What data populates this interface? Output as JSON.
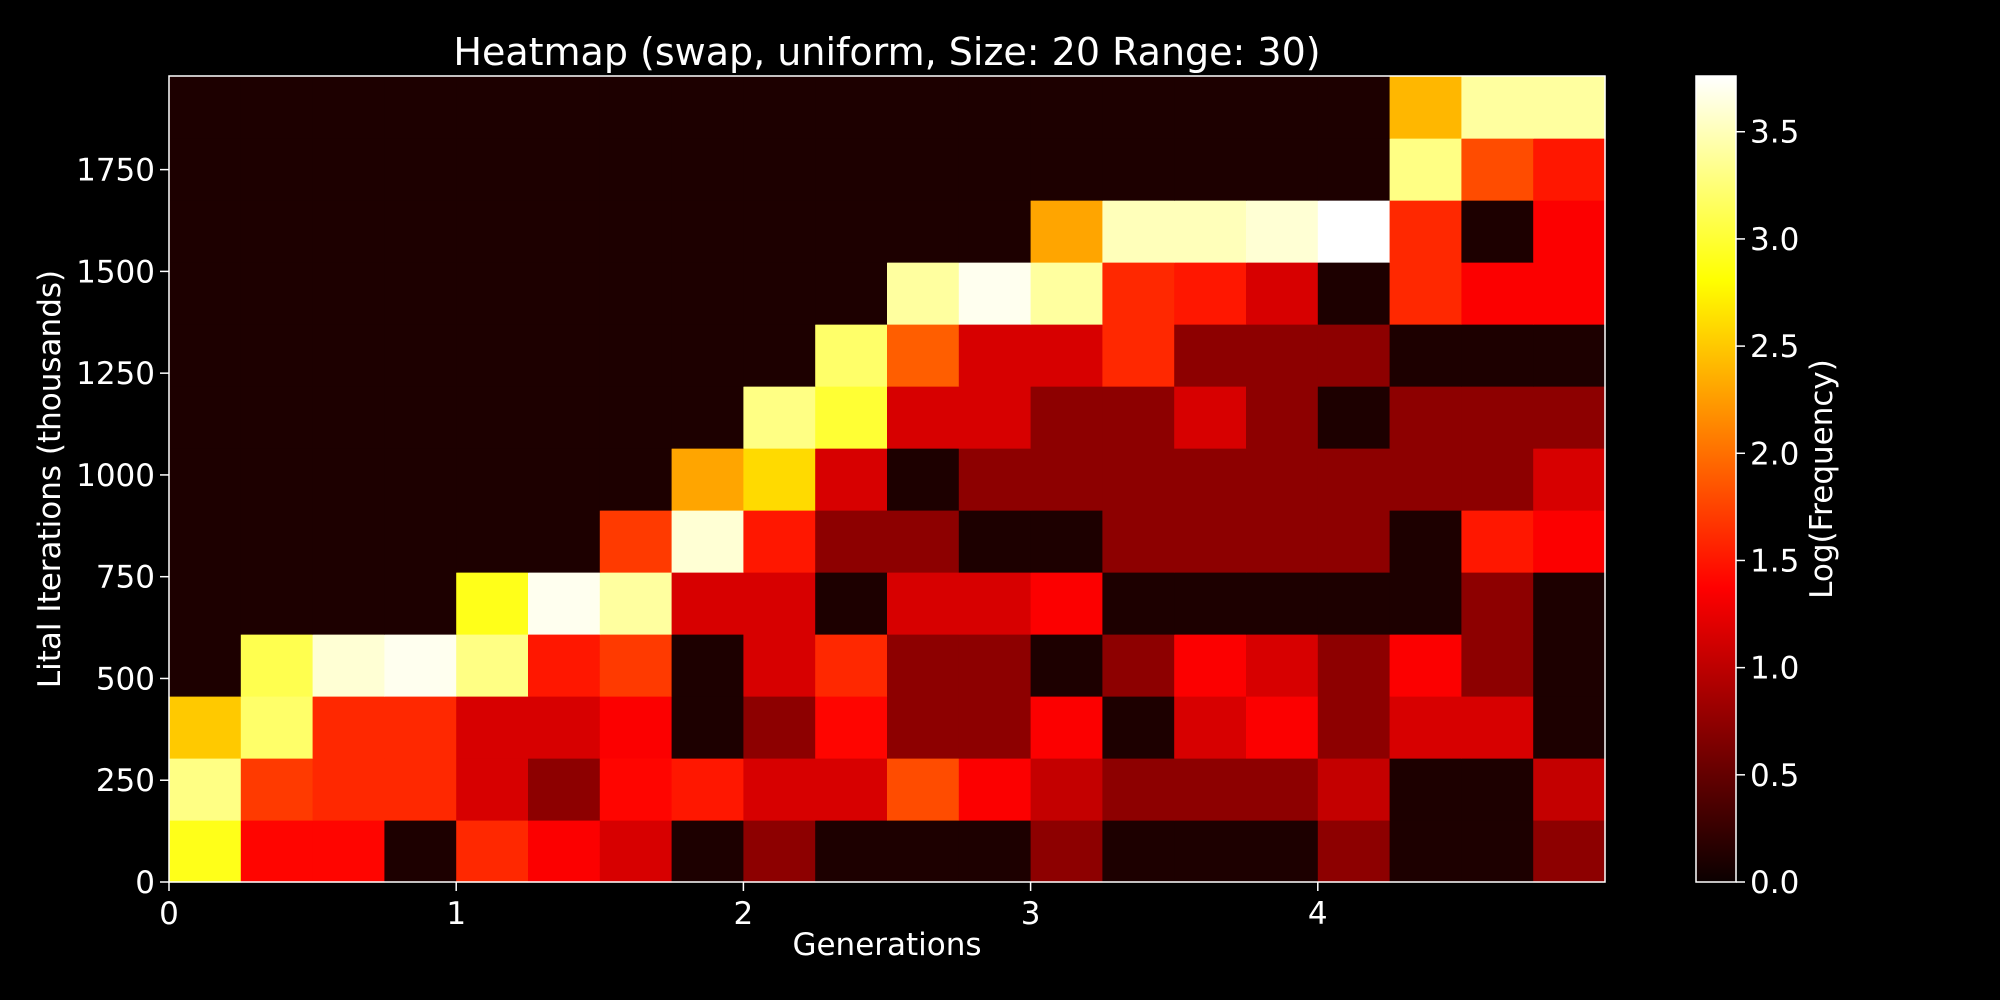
{
  "chart_data": {
    "type": "heatmap",
    "title": "Heatmap (swap, uniform, Size: 20 Range: 30)",
    "xlabel": "Generations",
    "ylabel": "Lital Iterations (thousands)",
    "colorbar_label": "Log(Frequency)",
    "colormap": "hot",
    "xlim": [
      0,
      5
    ],
    "ylim": [
      0,
      1980
    ],
    "clim": [
      0,
      3.76
    ],
    "x_ticks": [
      0,
      1,
      2,
      3,
      4
    ],
    "x_tick_labels": [
      "0",
      "1",
      "2",
      "3",
      "4"
    ],
    "y_ticks": [
      0,
      250,
      500,
      750,
      1000,
      1250,
      1500,
      1750
    ],
    "y_tick_labels": [
      "0",
      "250",
      "500",
      "750",
      "1000",
      "1250",
      "1500",
      "1750"
    ],
    "colorbar_ticks": [
      0.0,
      0.5,
      1.0,
      1.5,
      2.0,
      2.5,
      3.0,
      3.5
    ],
    "colorbar_tick_labels": [
      "0.0",
      "0.5",
      "1.0",
      "1.5",
      "2.0",
      "2.5",
      "3.0",
      "3.5"
    ],
    "n_cols": 20,
    "n_rows": 13,
    "x_bin_width": 0.25,
    "y_bin_height": 152.3,
    "grid": false,
    "values_row_order": "bottom-to-top",
    "values": [
      [
        2.9,
        1.4,
        1.4,
        0.1,
        1.6,
        1.3,
        1.1,
        0.1,
        0.7,
        0.1,
        0.1,
        0.1,
        0.7,
        0.1,
        0.1,
        0.1,
        0.7,
        0.1,
        0.1,
        0.7
      ],
      [
        3.3,
        1.7,
        1.6,
        1.6,
        1.1,
        0.7,
        1.4,
        1.5,
        1.1,
        1.1,
        1.8,
        1.3,
        1.0,
        0.7,
        0.7,
        0.7,
        1.0,
        0.1,
        0.1,
        1.0
      ],
      [
        2.5,
        3.2,
        1.6,
        1.6,
        1.1,
        1.1,
        1.3,
        0.1,
        0.7,
        1.4,
        0.7,
        0.7,
        1.3,
        0.1,
        1.1,
        1.3,
        0.7,
        1.1,
        1.1,
        0.1
      ],
      [
        0.1,
        3.1,
        3.6,
        3.7,
        3.3,
        1.5,
        1.7,
        0.1,
        1.1,
        1.6,
        0.7,
        0.7,
        0.1,
        0.7,
        1.3,
        1.1,
        0.7,
        1.3,
        0.7,
        0.1
      ],
      [
        0.1,
        0.1,
        0.1,
        0.1,
        2.9,
        3.7,
        3.4,
        1.1,
        1.1,
        0.1,
        1.1,
        1.1,
        1.3,
        0.1,
        0.1,
        0.1,
        0.1,
        0.1,
        0.7,
        0.1
      ],
      [
        0.1,
        0.1,
        0.1,
        0.1,
        0.1,
        0.1,
        1.7,
        3.6,
        1.5,
        0.7,
        0.7,
        0.1,
        0.1,
        0.7,
        0.7,
        0.7,
        0.7,
        0.1,
        1.5,
        1.3
      ],
      [
        0.1,
        0.1,
        0.1,
        0.1,
        0.1,
        0.1,
        0.1,
        2.3,
        2.6,
        1.1,
        0.1,
        0.7,
        0.7,
        0.7,
        0.7,
        0.7,
        0.7,
        0.7,
        0.7,
        1.1
      ],
      [
        0.1,
        0.1,
        0.1,
        0.1,
        0.1,
        0.1,
        0.1,
        0.1,
        3.3,
        3.0,
        1.1,
        1.1,
        0.7,
        0.7,
        1.1,
        0.7,
        0.1,
        0.7,
        0.7,
        0.7
      ],
      [
        0.1,
        0.1,
        0.1,
        0.1,
        0.1,
        0.1,
        0.1,
        0.1,
        0.1,
        3.2,
        1.9,
        1.1,
        1.1,
        1.6,
        0.7,
        0.7,
        0.7,
        0.1,
        0.1,
        0.1
      ],
      [
        0.1,
        0.1,
        0.1,
        0.1,
        0.1,
        0.1,
        0.1,
        0.1,
        0.1,
        0.1,
        3.4,
        3.7,
        3.4,
        1.6,
        1.5,
        1.1,
        0.1,
        1.6,
        1.3,
        1.3
      ],
      [
        0.1,
        0.1,
        0.1,
        0.1,
        0.1,
        0.1,
        0.1,
        0.1,
        0.1,
        0.1,
        0.1,
        0.1,
        2.3,
        3.5,
        3.5,
        3.6,
        3.76,
        1.6,
        0.1,
        1.3
      ],
      [
        0.1,
        0.1,
        0.1,
        0.1,
        0.1,
        0.1,
        0.1,
        0.1,
        0.1,
        0.1,
        0.1,
        0.1,
        0.1,
        0.1,
        0.1,
        0.1,
        0.1,
        3.3,
        1.8,
        1.5
      ],
      [
        0.1,
        0.1,
        0.1,
        0.1,
        0.1,
        0.1,
        0.1,
        0.1,
        0.1,
        0.1,
        0.1,
        0.1,
        0.1,
        0.1,
        0.1,
        0.1,
        0.1,
        2.4,
        3.4,
        3.4
      ]
    ]
  }
}
